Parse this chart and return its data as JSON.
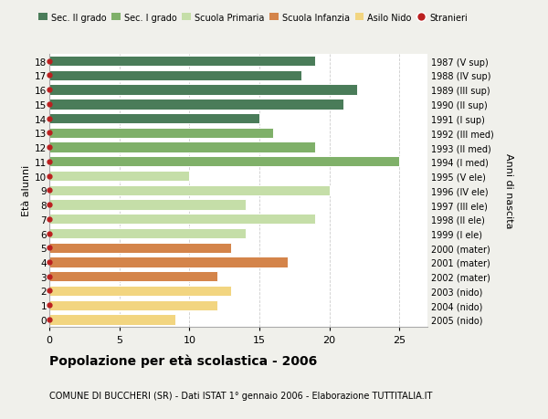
{
  "ages": [
    18,
    17,
    16,
    15,
    14,
    13,
    12,
    11,
    10,
    9,
    8,
    7,
    6,
    5,
    4,
    3,
    2,
    1,
    0
  ],
  "values": [
    19,
    18,
    22,
    21,
    15,
    16,
    19,
    25,
    10,
    20,
    14,
    19,
    14,
    13,
    17,
    12,
    13,
    12,
    9
  ],
  "right_labels": [
    "1987 (V sup)",
    "1988 (IV sup)",
    "1989 (III sup)",
    "1990 (II sup)",
    "1991 (I sup)",
    "1992 (III med)",
    "1993 (II med)",
    "1994 (I med)",
    "1995 (V ele)",
    "1996 (IV ele)",
    "1997 (III ele)",
    "1998 (II ele)",
    "1999 (I ele)",
    "2000 (mater)",
    "2001 (mater)",
    "2002 (mater)",
    "2003 (nido)",
    "2004 (nido)",
    "2005 (nido)"
  ],
  "bar_colors": [
    "#4a7c59",
    "#4a7c59",
    "#4a7c59",
    "#4a7c59",
    "#4a7c59",
    "#7fb069",
    "#7fb069",
    "#7fb069",
    "#c5dea8",
    "#c5dea8",
    "#c5dea8",
    "#c5dea8",
    "#c5dea8",
    "#d4844a",
    "#d4844a",
    "#d4844a",
    "#f2d580",
    "#f2d580",
    "#f2d580"
  ],
  "legend_labels": [
    "Sec. II grado",
    "Sec. I grado",
    "Scuola Primaria",
    "Scuola Infanzia",
    "Asilo Nido",
    "Stranieri"
  ],
  "legend_colors": [
    "#4a7c59",
    "#7fb069",
    "#c5dea8",
    "#d4844a",
    "#f2d580",
    "#bb2020"
  ],
  "title": "Popolazione per età scolastica - 2006",
  "subtitle": "COMUNE DI BUCCHERI (SR) - Dati ISTAT 1° gennaio 2006 - Elaborazione TUTTITALIA.IT",
  "ylabel_left": "Età alunni",
  "ylabel_right": "Anni di nascita",
  "xlim": [
    0,
    27
  ],
  "xticks": [
    0,
    5,
    10,
    15,
    20,
    25
  ],
  "background_color": "#f0f0eb",
  "plot_bg_color": "#ffffff",
  "grid_color": "#cccccc",
  "dot_color": "#bb2020",
  "bar_height": 0.72
}
